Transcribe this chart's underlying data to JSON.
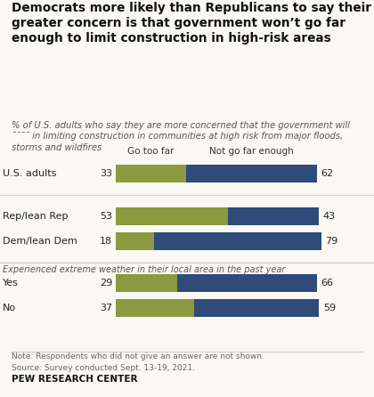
{
  "title": "Democrats more likely than Republicans to say their\ngreater concern is that government won’t go far\nenough to limit construction in high-risk areas",
  "subtitle": "% of U.S. adults who say they are more concerned that the government will\n—— in limiting construction in communities at high risk from major floods,\nstorms and wildfires",
  "col_header_left": "Go too far",
  "col_header_right": "Not go far enough",
  "groups": [
    {
      "label": "U.S. adults",
      "go_too_far": 33,
      "not_far_enough": 62,
      "section": 0
    },
    {
      "label": "Rep/lean Rep",
      "go_too_far": 53,
      "not_far_enough": 43,
      "section": 1
    },
    {
      "label": "Dem/lean Dem",
      "go_too_far": 18,
      "not_far_enough": 79,
      "section": 1
    },
    {
      "label": "Yes",
      "go_too_far": 29,
      "not_far_enough": 66,
      "section": 2
    },
    {
      "label": "No",
      "go_too_far": 37,
      "not_far_enough": 59,
      "section": 2
    }
  ],
  "section2_label": "Experienced extreme weather in their local area in the past year",
  "color_go_too_far": "#8B9A3E",
  "color_not_far_enough": "#2E4B7A",
  "note_line1": "Note: Respondents who did not give an answer are not shown.",
  "note_line2": "Source: Survey conducted Sept. 13-19, 2021.",
  "source_label": "PEW RESEARCH CENTER",
  "background_color": "#faf8f3"
}
